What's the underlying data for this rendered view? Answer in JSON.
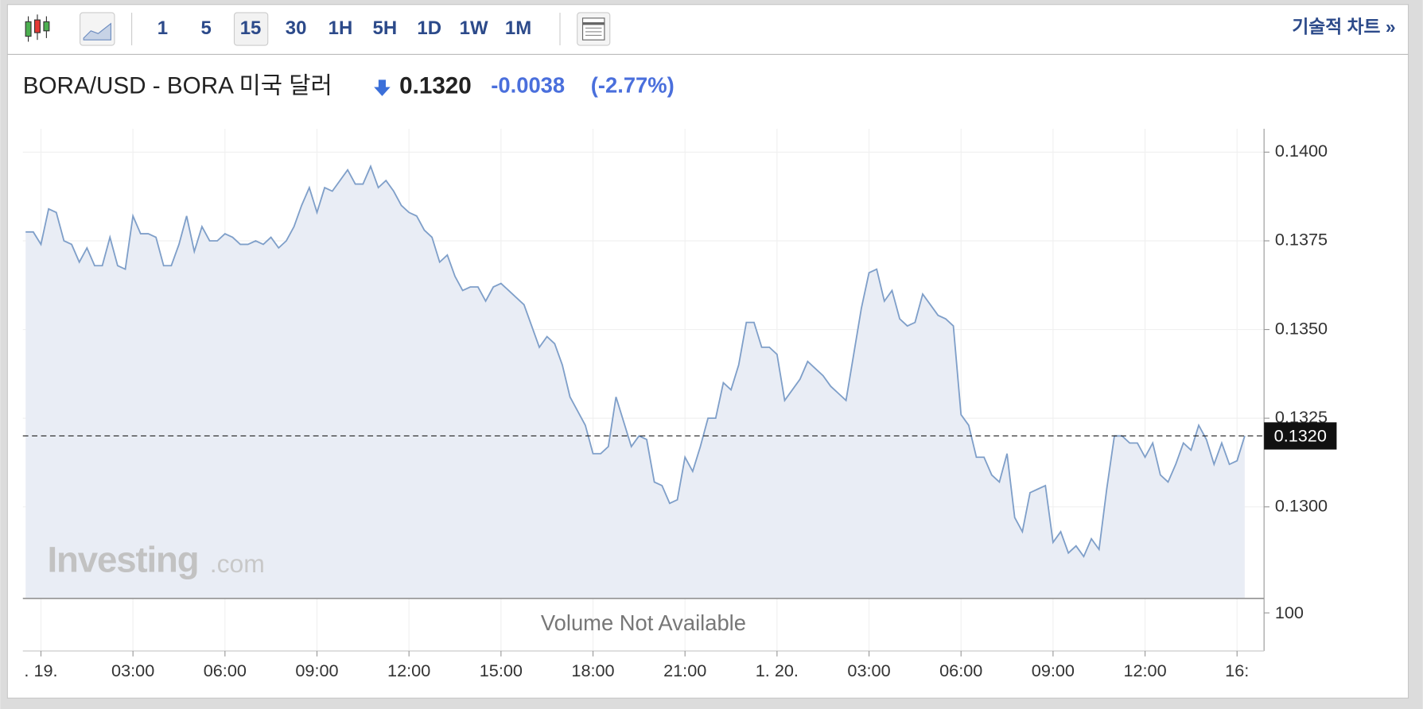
{
  "toolbar": {
    "intervals": [
      "1",
      "5",
      "15",
      "30",
      "1H",
      "5H",
      "1D",
      "1W",
      "1M"
    ],
    "link": "기술적 차트 »"
  },
  "header": {
    "title": "BORA/USD - BORA 미국 달러",
    "price": "0.1320",
    "change": "-0.0038",
    "change_pct": "(-2.77%)"
  },
  "watermark": {
    "brand": "Investing",
    "suffix": ".com"
  },
  "volume_pane": {
    "note": "Volume Not Available",
    "tick": "100"
  },
  "chart_data": {
    "type": "area",
    "color": "#7f9fc9",
    "fill": "#e9edf5",
    "grid": true,
    "x": [
      -0.5,
      -0.25,
      0,
      0.25,
      0.5,
      0.75,
      1,
      1.25,
      1.5,
      1.75,
      2,
      2.25,
      2.5,
      2.75,
      3,
      3.25,
      3.5,
      3.75,
      4,
      4.25,
      4.5,
      4.75,
      5,
      5.25,
      5.5,
      5.75,
      6,
      6.25,
      6.5,
      6.75,
      7,
      7.25,
      7.5,
      7.75,
      8,
      8.25,
      8.5,
      8.75,
      9,
      9.25,
      9.5,
      9.75,
      10,
      10.25,
      10.5,
      10.75,
      11,
      11.25,
      11.5,
      11.75,
      12,
      12.25,
      12.5,
      12.75,
      13,
      13.25,
      13.5,
      13.75,
      14,
      14.25,
      14.5,
      14.75,
      15,
      15.25,
      15.5,
      15.75,
      16,
      16.25,
      16.5,
      16.75,
      17,
      17.25,
      17.5,
      17.75,
      18,
      18.25,
      18.5,
      18.75,
      19,
      19.25,
      19.5,
      19.75,
      20,
      20.25,
      20.5,
      20.75,
      21,
      21.25,
      21.5,
      21.75,
      22,
      22.25,
      22.5,
      22.75,
      23,
      23.25,
      23.5,
      23.75,
      24,
      24.25,
      24.5,
      24.75,
      25,
      25.25,
      25.5,
      25.75,
      26,
      26.25,
      26.5,
      26.75,
      27,
      27.25,
      27.5,
      27.75,
      28,
      28.25,
      28.5,
      28.75,
      29,
      29.25,
      29.5,
      29.75,
      30,
      30.25,
      30.5,
      30.75,
      31,
      31.25,
      31.5,
      31.75,
      32,
      32.25,
      32.5,
      32.75,
      33,
      33.25,
      33.5,
      33.75,
      34,
      34.25,
      34.5,
      34.75,
      35,
      35.25,
      35.5,
      35.75,
      36,
      36.25,
      36.5,
      36.75,
      37,
      37.25,
      37.5,
      37.75,
      38,
      38.25,
      38.5,
      38.75,
      39,
      39.25
    ],
    "values": [
      0.13775,
      0.13775,
      0.1374,
      0.1384,
      0.1383,
      0.1375,
      0.1374,
      0.1369,
      0.1373,
      0.1368,
      0.1368,
      0.1376,
      0.1368,
      0.1367,
      0.1382,
      0.1377,
      0.1377,
      0.1376,
      0.1368,
      0.1368,
      0.1374,
      0.1382,
      0.1372,
      0.1379,
      0.1375,
      0.1375,
      0.1377,
      0.1376,
      0.1374,
      0.1374,
      0.1375,
      0.1374,
      0.1376,
      0.1373,
      0.1375,
      0.1379,
      0.1385,
      0.139,
      0.1383,
      0.139,
      0.1389,
      0.1392,
      0.1395,
      0.1391,
      0.1391,
      0.1396,
      0.139,
      0.1392,
      0.1389,
      0.1385,
      0.1383,
      0.1382,
      0.1378,
      0.1376,
      0.1369,
      0.1371,
      0.1365,
      0.1361,
      0.1362,
      0.1362,
      0.1358,
      0.1362,
      0.1363,
      0.1361,
      0.1359,
      0.1357,
      0.1351,
      0.1345,
      0.1348,
      0.1346,
      0.134,
      0.1331,
      0.1327,
      0.1323,
      0.1315,
      0.1315,
      0.1317,
      0.1331,
      0.1324,
      0.1317,
      0.132,
      0.1319,
      0.1307,
      0.1306,
      0.1301,
      0.1302,
      0.1314,
      0.131,
      0.1317,
      0.1325,
      0.1325,
      0.1335,
      0.1333,
      0.134,
      0.1352,
      0.1352,
      0.1345,
      0.1345,
      0.1343,
      0.133,
      0.1333,
      0.1336,
      0.1341,
      0.1339,
      0.1337,
      0.1334,
      0.1332,
      0.133,
      0.1343,
      0.1356,
      0.1366,
      0.1367,
      0.1358,
      0.1361,
      0.1353,
      0.1351,
      0.1352,
      0.136,
      0.1357,
      0.1354,
      0.1353,
      0.1351,
      0.1326,
      0.1323,
      0.1314,
      0.1314,
      0.1309,
      0.1307,
      0.1315,
      0.1297,
      0.1293,
      0.1304,
      0.1305,
      0.1306,
      0.129,
      0.1293,
      0.1287,
      0.1289,
      0.1286,
      0.1291,
      0.1288,
      0.1305,
      0.132,
      0.132,
      0.1318,
      0.1318,
      0.1314,
      0.1318,
      0.1309,
      0.1307,
      0.1312,
      0.1318,
      0.1316,
      0.1323,
      0.1319,
      0.1312,
      0.1318,
      0.1312,
      0.1313,
      0.132
    ],
    "xlim": [
      -0.59,
      39.88
    ],
    "xticks": [
      {
        "value": 0,
        "label": ". 19."
      },
      {
        "value": 3,
        "label": "03:00"
      },
      {
        "value": 6,
        "label": "06:00"
      },
      {
        "value": 9,
        "label": "09:00"
      },
      {
        "value": 12,
        "label": "12:00"
      },
      {
        "value": 15,
        "label": "15:00"
      },
      {
        "value": 18,
        "label": "18:00"
      },
      {
        "value": 21,
        "label": "21:00"
      },
      {
        "value": 24,
        "label": "1. 20."
      },
      {
        "value": 27,
        "label": "03:00"
      },
      {
        "value": 30,
        "label": "06:00"
      },
      {
        "value": 33,
        "label": "09:00"
      },
      {
        "value": 36,
        "label": "12:00"
      },
      {
        "value": 39,
        "label": "16:"
      }
    ],
    "ylim": [
      0.12742,
      0.14066
    ],
    "yticks": [
      {
        "value": 0.13,
        "label": "0.1300"
      },
      {
        "value": 0.1325,
        "label": "0.1325"
      },
      {
        "value": 0.135,
        "label": "0.1350"
      },
      {
        "value": 0.1375,
        "label": "0.1375"
      },
      {
        "value": 0.14,
        "label": "0.1400"
      }
    ],
    "current": {
      "value": 0.132,
      "label": "0.1320"
    }
  }
}
